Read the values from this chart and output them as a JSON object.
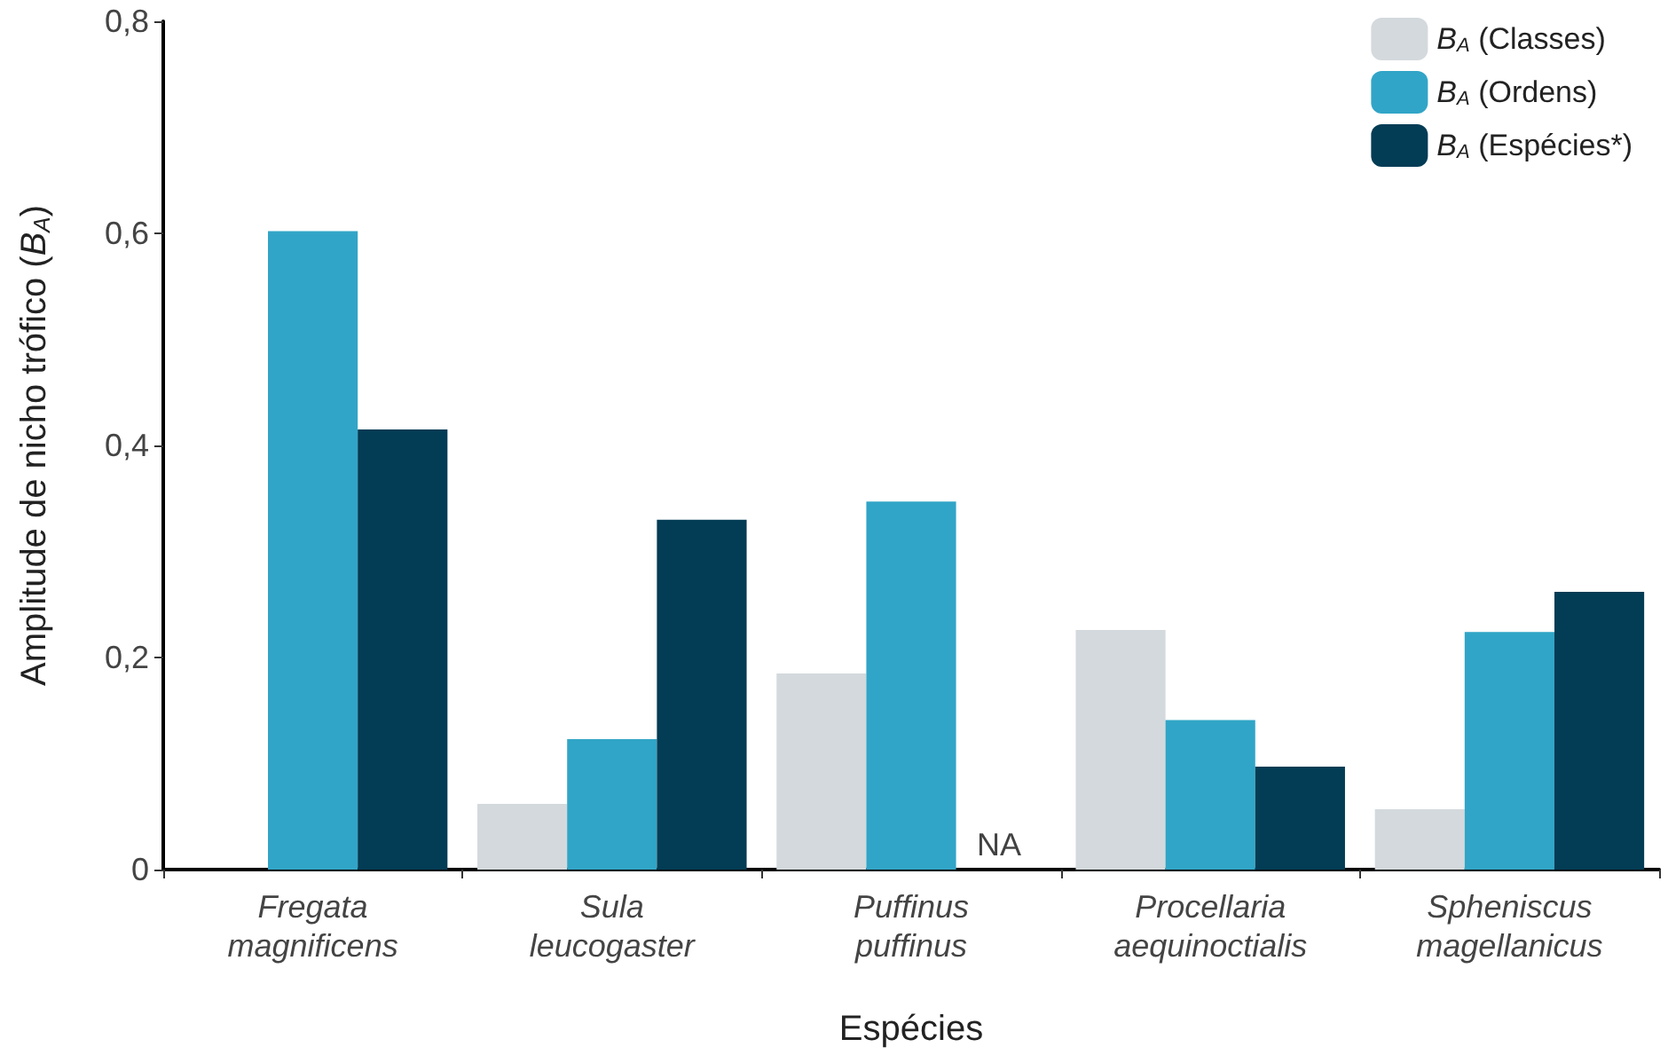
{
  "chart_data": {
    "type": "bar",
    "xlabel": "Espécies",
    "ylabel": "Amplitude de nicho trófico (B$_{A}$)",
    "categories": [
      "Fregata\nmagnificens",
      "Sula\nleucogaster",
      "Puffinus\npuffinus",
      "Procellaria\naequinoctialis",
      "Spheniscus\nmagellanicus"
    ],
    "series": [
      {
        "name": "B$_{A}$ (Classes)",
        "color": "#d3d9dc",
        "values": [
          0,
          0.062,
          0.185,
          0.226,
          0.057
        ]
      },
      {
        "name": "B$_{A}$ (Ordens)",
        "color": "#31a5c7",
        "values": [
          0.602,
          0.123,
          0.347,
          0.141,
          0.224
        ]
      },
      {
        "name": "B$_{A}$ (Espécies*)",
        "color": "#033c55",
        "values": [
          0.415,
          0.33,
          null,
          0.097,
          0.262
        ]
      }
    ],
    "ylim": [
      0,
      0.8
    ],
    "yticks": [
      {
        "value": 0,
        "label": "0"
      },
      {
        "value": 0.2,
        "label": "0,2"
      },
      {
        "value": 0.4,
        "label": "0,4"
      },
      {
        "value": 0.6,
        "label": "0,6"
      },
      {
        "value": 0.8,
        "label": "0,8"
      }
    ],
    "annotations": [
      {
        "text": "NA",
        "x": "Puffinus\npuffinus",
        "y": 0
      }
    ],
    "grid": false,
    "legend": "top right"
  }
}
